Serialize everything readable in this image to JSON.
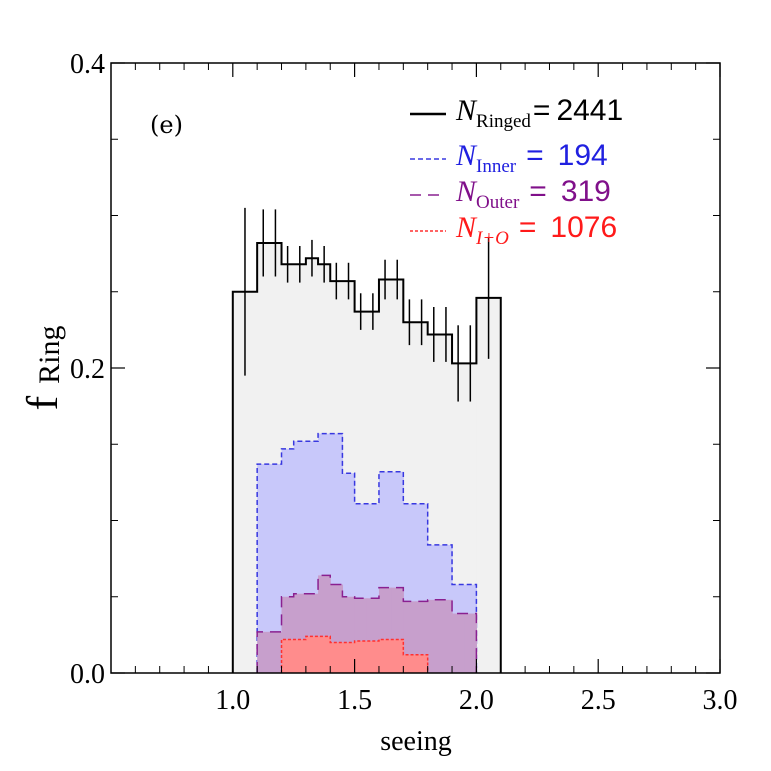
{
  "chart_data": {
    "type": "histogram",
    "panel_label": "(e)",
    "xlabel": "seeing",
    "ylabel_main": "f",
    "ylabel_sub": "Ring",
    "xlim": [
      0.5,
      3.0
    ],
    "ylim": [
      0.0,
      0.4
    ],
    "xticks": [
      1.0,
      1.5,
      2.0,
      2.5,
      3.0
    ],
    "xtick_labels": [
      "1.0",
      "1.5",
      "2.0",
      "2.5",
      "3.0"
    ],
    "yticks": [
      0.0,
      0.2,
      0.4
    ],
    "ytick_labels": [
      "0.0",
      "0.2",
      "0.4"
    ],
    "bin_edges": [
      1.0,
      1.1,
      1.15,
      1.2,
      1.25,
      1.3,
      1.35,
      1.4,
      1.45,
      1.5,
      1.55,
      1.6,
      1.65,
      1.7,
      1.75,
      1.8,
      1.85,
      1.9,
      1.95,
      2.0,
      2.1
    ],
    "series": [
      {
        "name": "Ringed",
        "legend_symbol": "N",
        "legend_sub": "Ringed",
        "legend_eq": "=",
        "legend_value": "2441",
        "color": "#000000",
        "fill": "#f1f1f1",
        "values": [
          0.25,
          0.282,
          0.282,
          0.268,
          0.268,
          0.272,
          0.268,
          0.257,
          0.257,
          0.237,
          0.237,
          0.258,
          0.258,
          0.23,
          0.23,
          0.222,
          0.222,
          0.203,
          0.203,
          0.246
        ],
        "errors": [
          0.055,
          0.022,
          0.022,
          0.012,
          0.012,
          0.012,
          0.012,
          0.012,
          0.012,
          0.012,
          0.012,
          0.013,
          0.013,
          0.015,
          0.015,
          0.018,
          0.018,
          0.025,
          0.025,
          0.04
        ]
      },
      {
        "name": "Inner",
        "legend_symbol": "N",
        "legend_sub": "Inner",
        "legend_eq": "=",
        "legend_value": "194",
        "color": "#3838e0",
        "fill": "#c8c8fa",
        "values": [
          0.0,
          0.137,
          0.137,
          0.147,
          0.152,
          0.152,
          0.157,
          0.157,
          0.131,
          0.111,
          0.111,
          0.132,
          0.132,
          0.111,
          0.111,
          0.084,
          0.084,
          0.058,
          0.058,
          0.0
        ]
      },
      {
        "name": "Outer",
        "legend_symbol": "N",
        "legend_sub": "Outer",
        "legend_eq": "=",
        "legend_value": "319",
        "color": "#8a2090",
        "fill": "#c79fcc",
        "values": [
          0.0,
          0.027,
          0.027,
          0.05,
          0.052,
          0.052,
          0.064,
          0.058,
          0.05,
          0.049,
          0.049,
          0.056,
          0.056,
          0.047,
          0.047,
          0.048,
          0.048,
          0.039,
          0.039,
          0.0
        ]
      },
      {
        "name": "I+O",
        "legend_symbol": "N",
        "legend_sub": "I+O",
        "legend_eq": "=",
        "legend_value": "1076",
        "color": "#ff3030",
        "fill": "#ff8c8c",
        "values": [
          0.0,
          0.0,
          0.0,
          0.022,
          0.022,
          0.024,
          0.024,
          0.02,
          0.02,
          0.021,
          0.021,
          0.022,
          0.022,
          0.012,
          0.012,
          0.0,
          0.0,
          0.0,
          0.0,
          0.0
        ]
      }
    ]
  }
}
